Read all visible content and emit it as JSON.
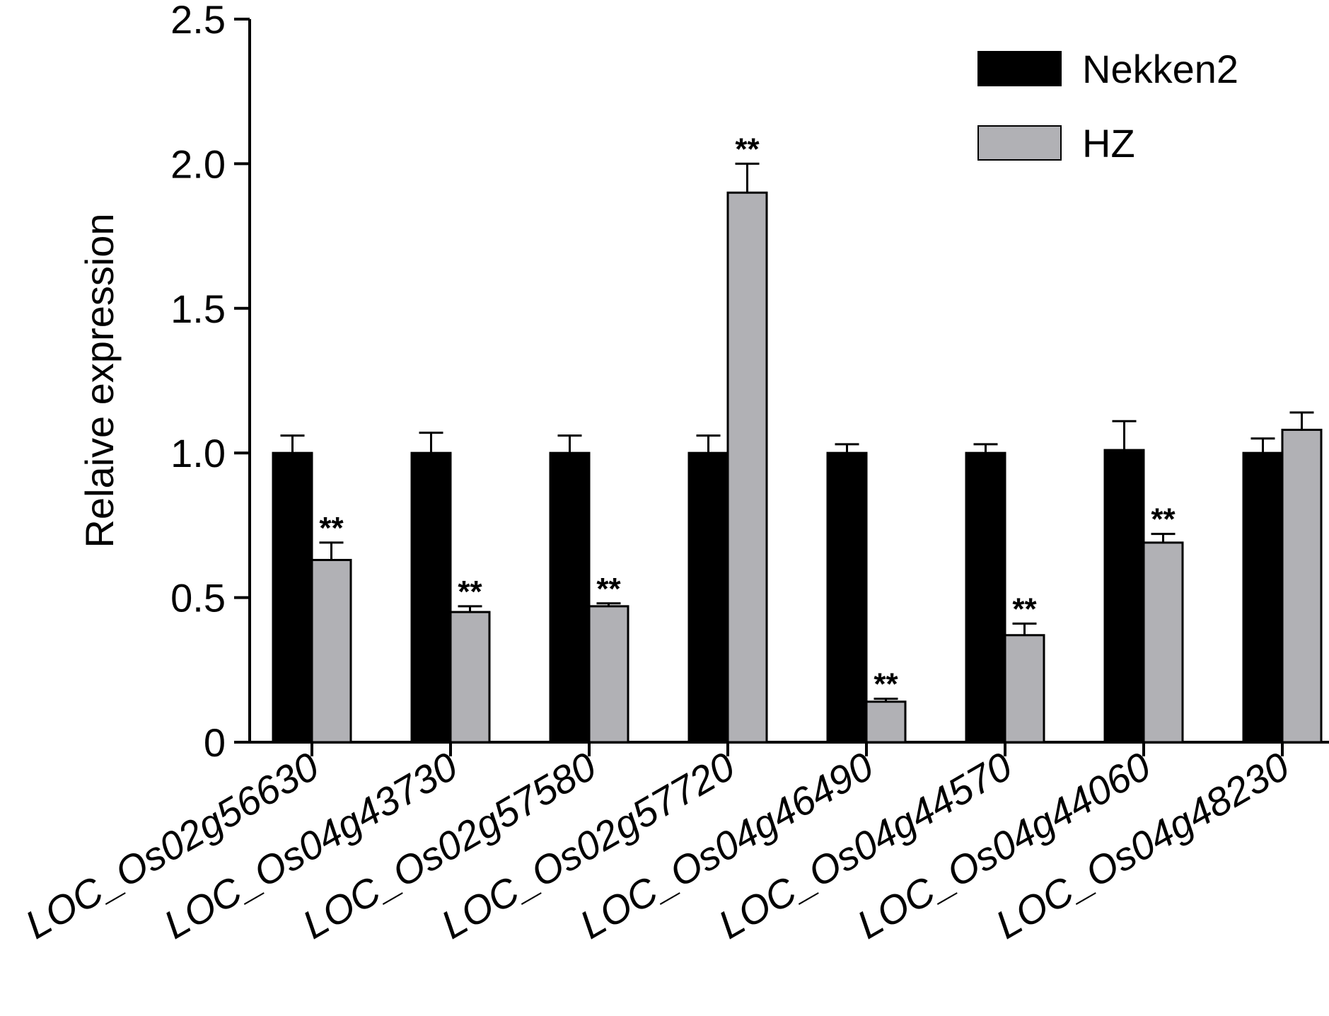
{
  "chart_data": {
    "type": "bar",
    "ylabel": "Relaive expression",
    "xlabel": "",
    "ylim": [
      0,
      2.5
    ],
    "yticks": [
      0,
      0.5,
      1.0,
      1.5,
      2.0,
      2.5
    ],
    "ytick_labels": [
      "0",
      "0.5",
      "1.0",
      "1.5",
      "2.0",
      "2.5"
    ],
    "categories": [
      "LOC_Os02g56630",
      "LOC_Os04g43730",
      "LOC_Os02g57580",
      "LOC_Os02g57720",
      "LOC_Os04g46490",
      "LOC_Os04g44570",
      "LOC_Os04g44060",
      "LOC_Os04g48230"
    ],
    "series": [
      {
        "name": "Nekken2",
        "color": "#000000",
        "values": [
          1.0,
          1.0,
          1.0,
          1.0,
          1.0,
          1.0,
          1.01,
          1.0
        ],
        "errors": [
          0.06,
          0.07,
          0.06,
          0.06,
          0.03,
          0.03,
          0.1,
          0.05
        ],
        "significance": [
          "",
          "",
          "",
          "",
          "",
          "",
          "",
          ""
        ]
      },
      {
        "name": "HZ",
        "color": "#b1b1b5",
        "values": [
          0.63,
          0.45,
          0.47,
          1.9,
          0.14,
          0.37,
          0.69,
          1.08
        ],
        "errors": [
          0.06,
          0.02,
          0.01,
          0.1,
          0.01,
          0.04,
          0.03,
          0.06
        ],
        "significance": [
          "**",
          "**",
          "**",
          "**",
          "**",
          "**",
          "**",
          ""
        ]
      }
    ],
    "legend": {
      "placement": "top-right"
    },
    "grid": false
  }
}
